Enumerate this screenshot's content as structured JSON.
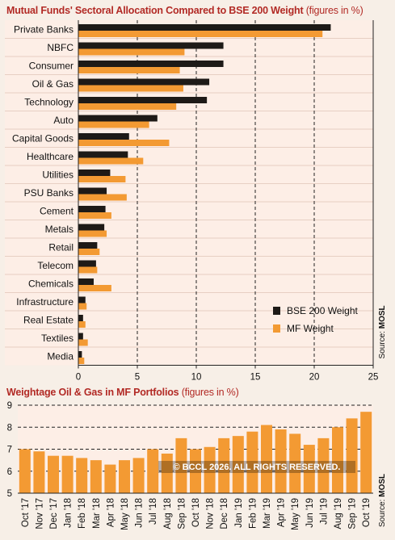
{
  "titles": {
    "chart1_main": "Mutual Funds' Sectoral Allocation Compared to BSE 200 Weight",
    "chart1_sub": "(figures in %)",
    "chart2_main": "Weightage Oil & Gas in MF Portfolios",
    "chart2_sub": "(figures in %)"
  },
  "source": {
    "label": "Source: ",
    "brand": "MOSL"
  },
  "watermark": "© BCCL 2026. ALL RIGHTS RESERVED.",
  "colors": {
    "bse": "#1e1a17",
    "mf": "#f39a33",
    "title": "#b22a25",
    "panel": "#fdeee6",
    "rowline": "#e7cfc3",
    "bg": "#f7efe7"
  },
  "chart_data": [
    {
      "type": "bar",
      "orientation": "horizontal",
      "title": "Mutual Funds' Sectoral Allocation Compared to BSE 200 Weight (figures in %)",
      "categories": [
        "Private Banks",
        "NBFC",
        "Consumer",
        "Oil & Gas",
        "Technology",
        "Auto",
        "Capital Goods",
        "Healthcare",
        "Utilities",
        "PSU Banks",
        "Cement",
        "Metals",
        "Retail",
        "Telecom",
        "Chemicals",
        "Infrastructure",
        "Real Estate",
        "Textiles",
        "Media"
      ],
      "series": [
        {
          "name": "BSE 200 Weight",
          "values": [
            21.4,
            12.3,
            12.3,
            11.1,
            10.9,
            6.7,
            4.3,
            4.2,
            2.7,
            2.4,
            2.3,
            2.2,
            1.6,
            1.5,
            1.3,
            0.6,
            0.4,
            0.4,
            0.3
          ]
        },
        {
          "name": "MF Weight",
          "values": [
            20.7,
            9.0,
            8.6,
            8.9,
            8.3,
            6.0,
            7.7,
            5.5,
            4.0,
            4.1,
            2.8,
            2.4,
            1.8,
            1.6,
            2.8,
            0.7,
            0.6,
            0.8,
            0.5
          ]
        }
      ],
      "xticks": [
        0,
        5,
        10,
        15,
        20,
        25
      ],
      "xlim": [
        0,
        25
      ],
      "grid": "dashed vertical at 5, 10, 15, 20",
      "legend": "bottom-right"
    },
    {
      "type": "bar",
      "title": "Weightage Oil & Gas in MF Portfolios (figures in %)",
      "categories": [
        "Oct '17",
        "Nov '17",
        "Dec '17",
        "Jan '18",
        "Feb '18",
        "Mar '18",
        "Apr '18",
        "May '18",
        "Jun '18",
        "Jul '18",
        "Aug '18",
        "Sep '18",
        "Oct '18",
        "Nov '18",
        "Dec '18",
        "Jan '19",
        "Feb '19",
        "Mar '19",
        "Apr '19",
        "May '19",
        "Jun '19",
        "Jul '19",
        "Aug '19",
        "Sep '19",
        "Oct '19"
      ],
      "values": [
        7.0,
        6.9,
        6.7,
        6.7,
        6.6,
        6.5,
        6.3,
        6.5,
        6.6,
        7.0,
        6.8,
        7.5,
        7.0,
        7.1,
        7.5,
        7.6,
        7.8,
        8.1,
        7.9,
        7.7,
        7.2,
        7.5,
        8.0,
        8.4,
        8.7
      ],
      "yticks": [
        5,
        6,
        7,
        8,
        9
      ],
      "ylim": [
        5,
        9
      ],
      "grid": "dashed horizontal"
    }
  ]
}
